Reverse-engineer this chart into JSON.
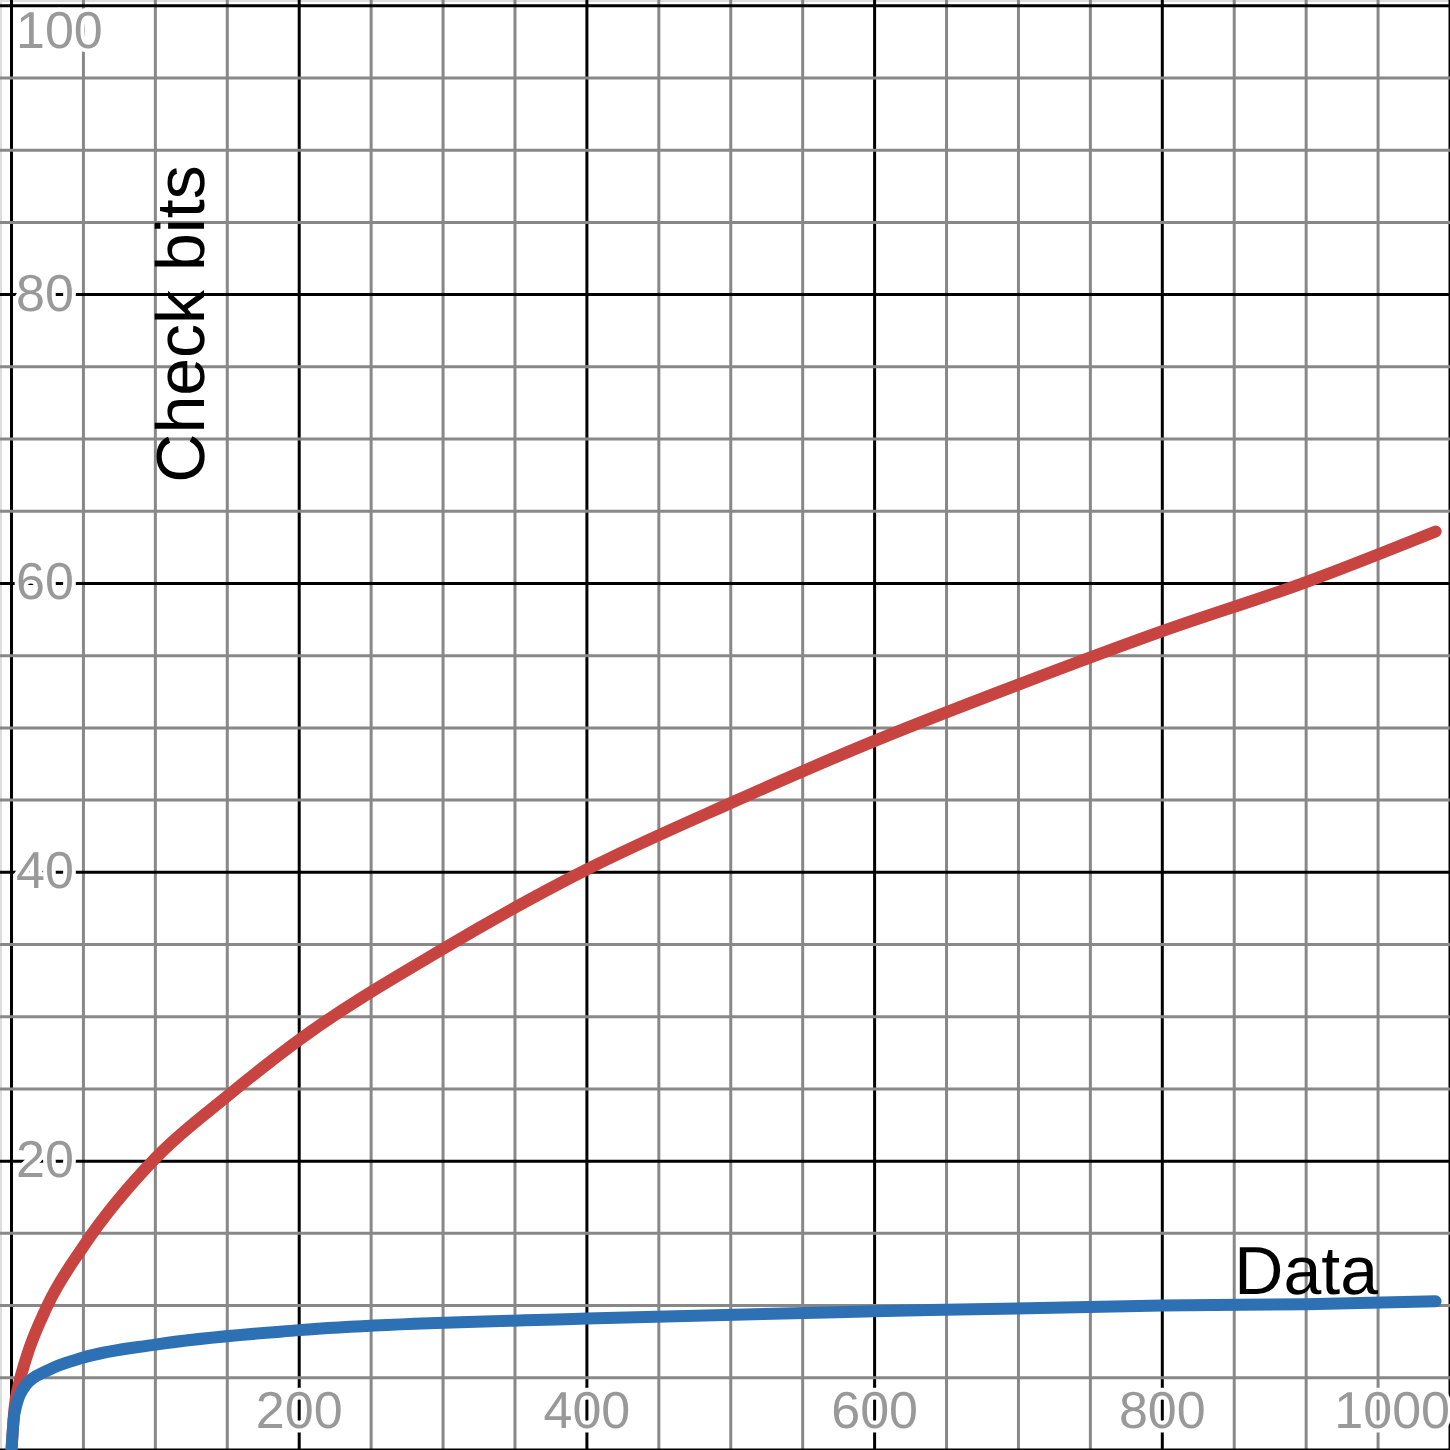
{
  "chart_data": {
    "type": "line",
    "ylabel": "Check bits",
    "series": [
      {
        "color": "#c74440",
        "x": [
          0,
          2,
          5,
          10,
          25,
          50,
          100,
          150,
          200,
          300,
          400,
          500,
          600,
          700,
          800,
          900,
          990
        ],
        "values": [
          0,
          2.8,
          4.5,
          6.3,
          10,
          14.1,
          20.2,
          24.5,
          28.4,
          34.7,
          40.2,
          44.8,
          49.1,
          53,
          56.7,
          60.1,
          63.6
        ]
      },
      {
        "name": "Data",
        "color": "#2d70b3",
        "x": [
          0,
          2,
          10,
          25,
          50,
          100,
          200,
          400,
          600,
          800,
          900,
          990
        ],
        "values": [
          0,
          2.5,
          4.5,
          5.5,
          6.4,
          7.3,
          8.3,
          9.1,
          9.6,
          10,
          10.1,
          10.3
        ]
      }
    ],
    "xlim": [
      -8,
      1000
    ],
    "ylim": [
      0,
      100.4
    ],
    "xticks": [
      {
        "value": 0,
        "label": null
      },
      {
        "value": 50,
        "label": null
      },
      {
        "value": 100,
        "label": null
      },
      {
        "value": 150,
        "label": null
      },
      200,
      {
        "value": 250,
        "label": null
      },
      {
        "value": 300,
        "label": null
      },
      {
        "value": 350,
        "label": null
      },
      400,
      {
        "value": 450,
        "label": null
      },
      {
        "value": 500,
        "label": null
      },
      {
        "value": 550,
        "label": null
      },
      600,
      {
        "value": 650,
        "label": null
      },
      {
        "value": 700,
        "label": null
      },
      {
        "value": 750,
        "label": null
      },
      800,
      {
        "value": 850,
        "label": null
      },
      {
        "value": 900,
        "label": null
      },
      {
        "value": 950,
        "label": null
      },
      1000
    ],
    "yticks": [
      {
        "value": 0,
        "label": null
      },
      {
        "value": 5,
        "label": null
      },
      {
        "value": 10,
        "label": null
      },
      {
        "value": 15,
        "label": null
      },
      20,
      {
        "value": 25,
        "label": null
      },
      {
        "value": 30,
        "label": null
      },
      {
        "value": 35,
        "label": null
      },
      40,
      {
        "value": 45,
        "label": null
      },
      {
        "value": 50,
        "label": null
      },
      {
        "value": 55,
        "label": null
      },
      60,
      {
        "value": 65,
        "label": null
      },
      {
        "value": 70,
        "label": null
      },
      {
        "value": 75,
        "label": null
      },
      80,
      {
        "value": 85,
        "label": null
      },
      {
        "value": 90,
        "label": null
      },
      {
        "value": 95,
        "label": null
      },
      100
    ],
    "grid": true,
    "line_style": "solid",
    "marker": "none"
  }
}
